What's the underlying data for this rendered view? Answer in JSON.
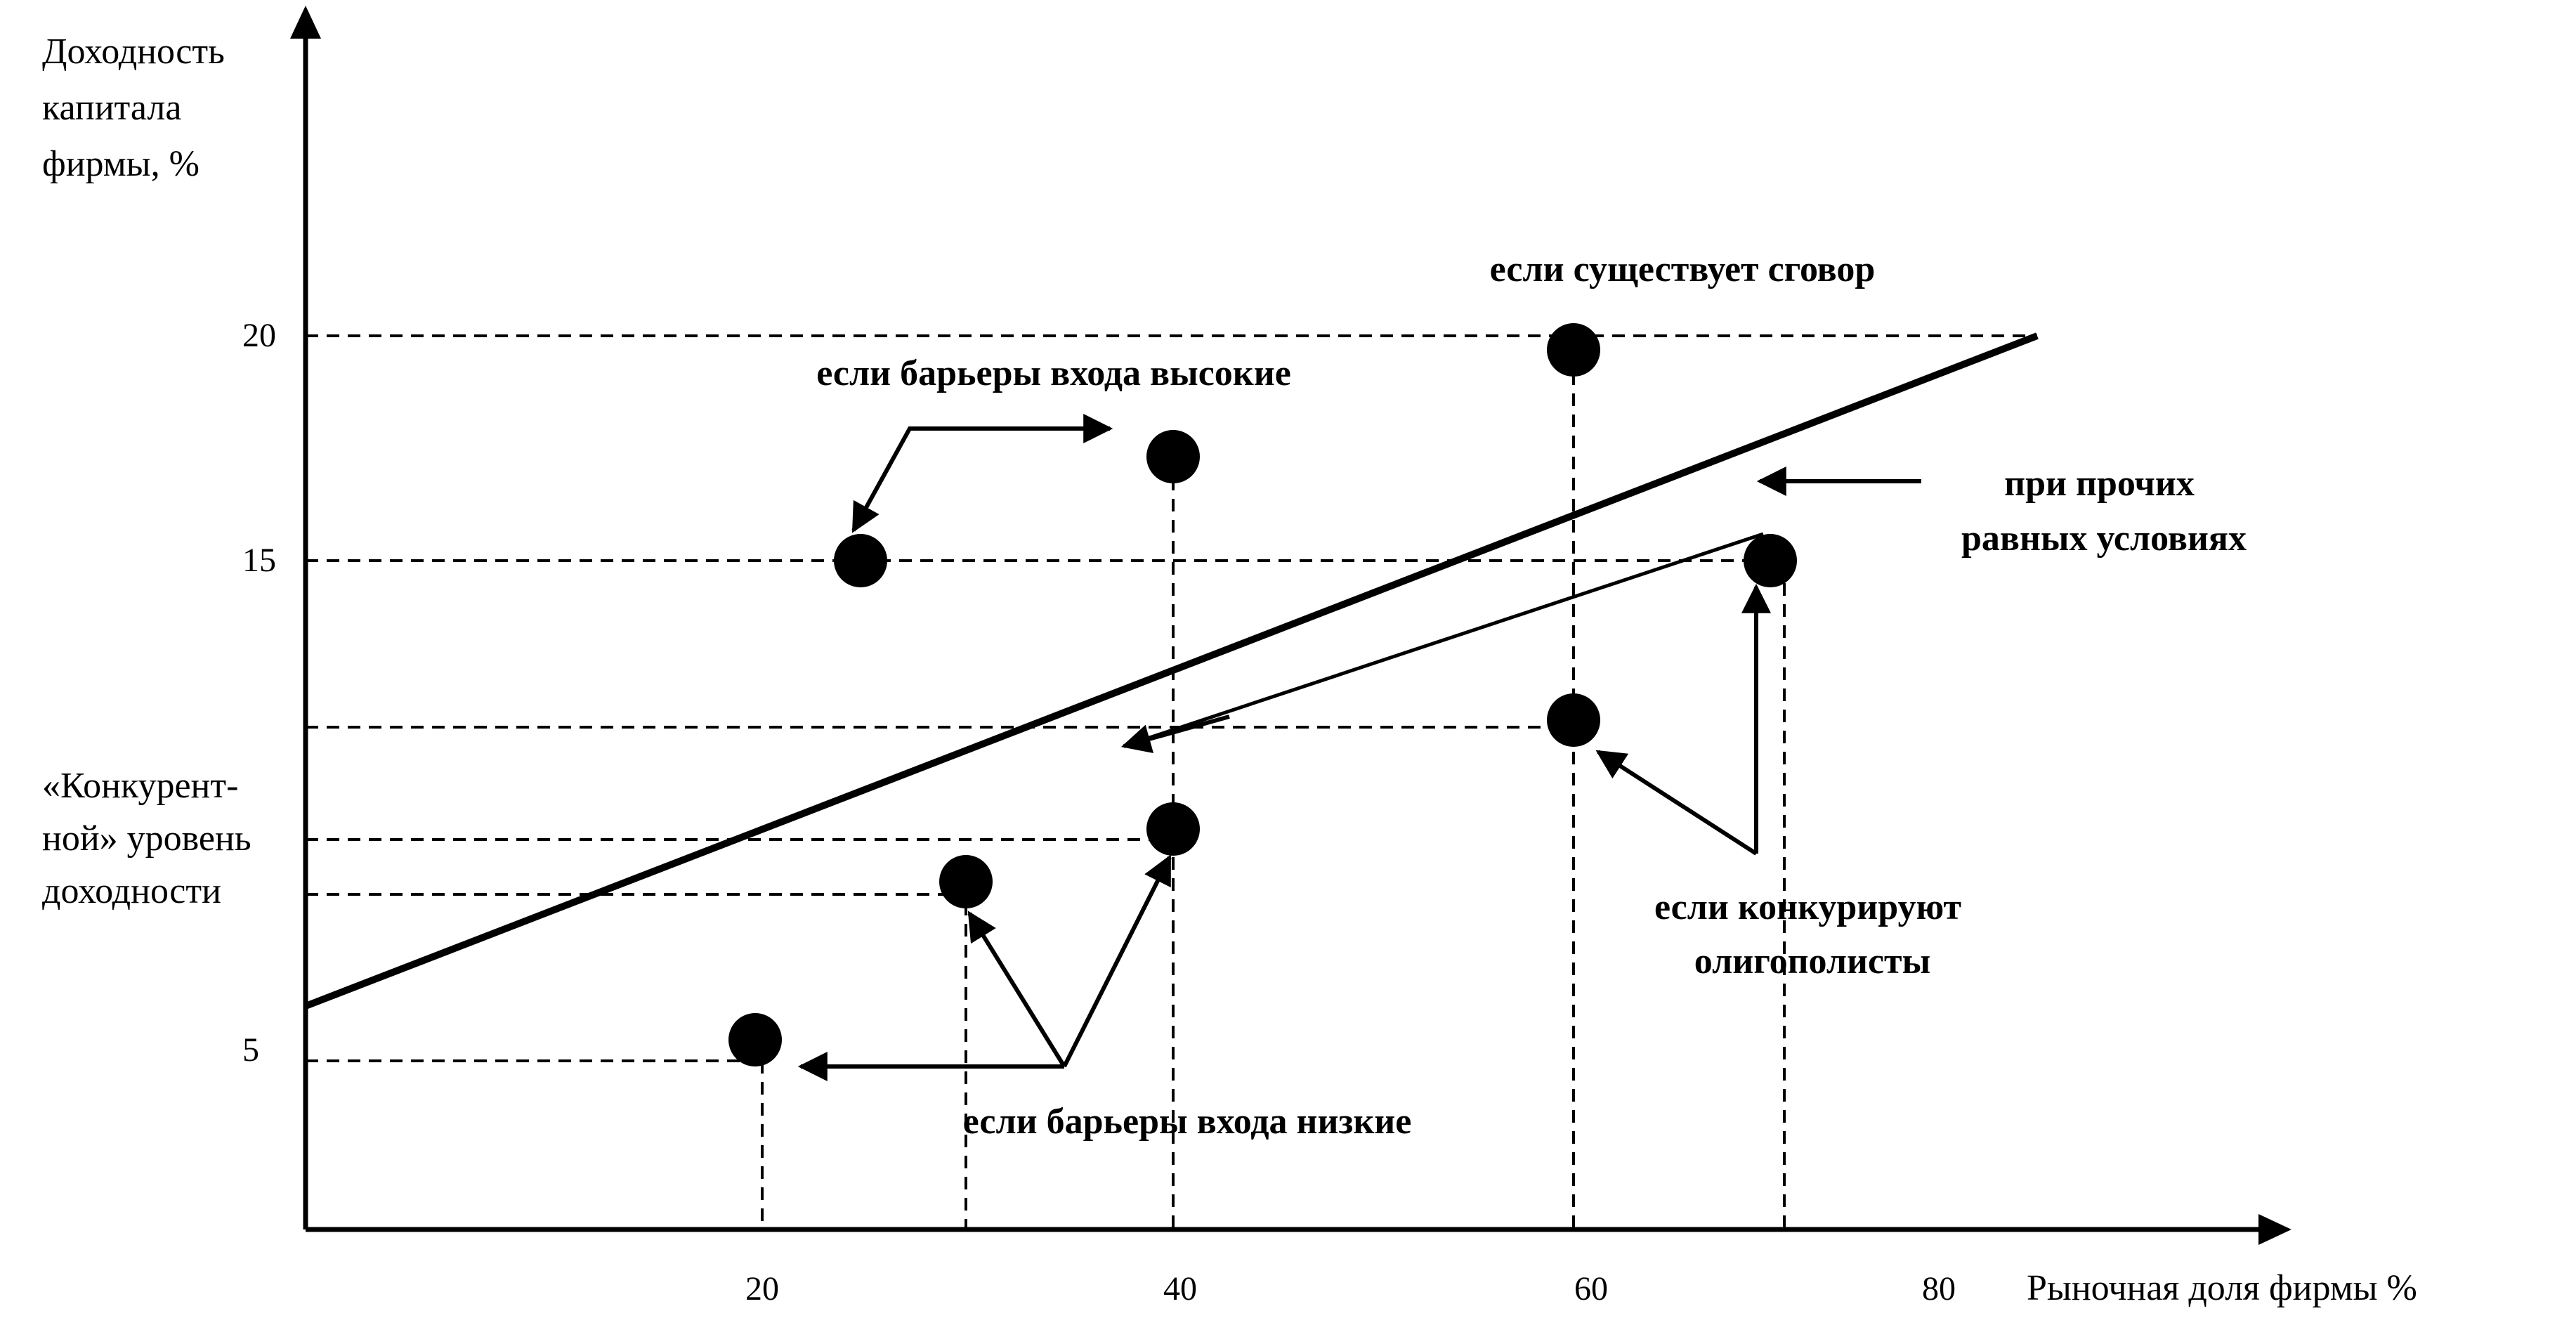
{
  "y_axis_label": [
    "Доходность",
    "капитала",
    "фирмы, %"
  ],
  "x_axis_label": "Рыночная доля фирмы %",
  "x_ticks": [
    "20",
    "40",
    "60",
    "80"
  ],
  "y_ticks": [
    "20",
    "15",
    "5"
  ],
  "competitive_level_label": [
    "«Конкурент-",
    "ной» уровень",
    "доходности"
  ],
  "annotations": {
    "collusion": "если существует сговор",
    "high_barriers": "если барьеры входа высокие",
    "ceteris_paribus": [
      "при прочих",
      "равных условиях"
    ],
    "oligopoly_compete": [
      "если конкурируют",
      "олигополисты"
    ],
    "low_barriers": "если барьеры входа низкие"
  },
  "chart_data": {
    "type": "scatter",
    "xlabel": "Рыночная доля фирмы %",
    "ylabel": "Доходность капитала фирмы, %",
    "points": [
      {
        "x": 20,
        "y": 5
      },
      {
        "x": 30,
        "y": 9
      },
      {
        "x": 40,
        "y": 10
      },
      {
        "x": 25,
        "y": 15
      },
      {
        "x": 40,
        "y": 17
      },
      {
        "x": 60,
        "y": 20
      },
      {
        "x": 60,
        "y": 12
      },
      {
        "x": 70,
        "y": 15
      }
    ]
  }
}
